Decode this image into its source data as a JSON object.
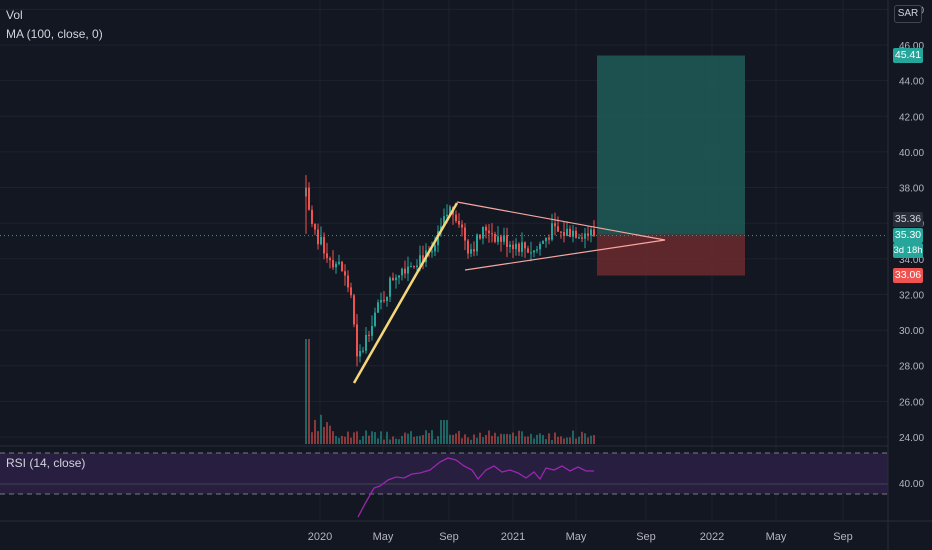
{
  "legend": {
    "vol": "Vol",
    "ma": "MA (100, close, 0)",
    "rsi": "RSI (14, close)"
  },
  "currency_button": "SAR",
  "price_axis": {
    "ticks": [
      "48.00",
      "46.00",
      "44.00",
      "42.00",
      "40.00",
      "38.00",
      "36.00",
      "34.00",
      "32.00",
      "30.00",
      "28.00",
      "26.00",
      "24.00"
    ]
  },
  "rsi_axis": {
    "ticks": [
      "40.00"
    ]
  },
  "time_axis": {
    "labels": [
      "2020",
      "May",
      "Sep",
      "2021",
      "May",
      "Sep",
      "2022",
      "May",
      "Sep"
    ]
  },
  "price_tags": {
    "target": "45.41",
    "prev_close": "35.36",
    "last": "35.30",
    "countdown": "3d 18h",
    "stop": "33.06"
  },
  "colors": {
    "background": "#131722",
    "up": "#26a69a",
    "down": "#ef5350",
    "target_zone": "#1e5c57",
    "stop_zone": "#6b2a2d",
    "trendline": "#f5d77a",
    "triangle": "#f7a8a0",
    "rsi_line": "#9c27b0",
    "rsi_band": "#2a1f44"
  },
  "chart_data": {
    "type": "candlestick",
    "ylim": [
      24,
      48
    ],
    "target_price": 45.41,
    "entry_price": 35.36,
    "stop_price": 33.06,
    "last_price": 35.3,
    "rsi_level": 40
  }
}
